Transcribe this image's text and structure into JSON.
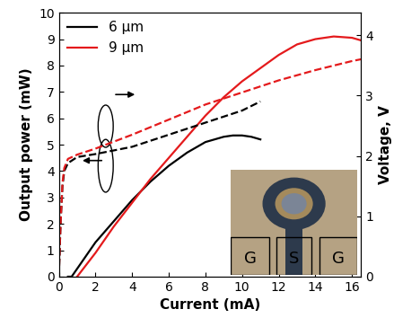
{
  "chart_data": {
    "type": "line",
    "x_label": "Current (mA)",
    "y_label": "Output power (mW)",
    "y2_label": "Voltage, V",
    "xlim": [
      0,
      16.5
    ],
    "xticks": [
      0,
      2,
      4,
      6,
      8,
      10,
      12,
      14,
      16
    ],
    "ylim": [
      0,
      10
    ],
    "yticks": [
      0,
      1,
      2,
      3,
      4,
      5,
      6,
      7,
      8,
      9,
      10
    ],
    "y2lim": [
      0,
      4.37
    ],
    "y2ticks": [
      0,
      1,
      2,
      3,
      4
    ],
    "grid": false,
    "legend": "upper left",
    "annotations": [
      "G",
      "S",
      "G"
    ],
    "series": [
      {
        "name": "6 µm",
        "color": "#000000",
        "line_style": "solid",
        "x": [
          0.5,
          0.7,
          1,
          2,
          3,
          4,
          5,
          6,
          7,
          8,
          9,
          9.5,
          10,
          10.5,
          11
        ],
        "values": [
          0,
          0,
          0.3,
          1.3,
          2.1,
          2.9,
          3.6,
          4.2,
          4.7,
          5.1,
          5.3,
          5.35,
          5.35,
          5.3,
          5.2
        ]
      },
      {
        "name": "9 µm",
        "color": "#e41a1c",
        "line_style": "solid",
        "x": [
          1,
          2,
          3,
          4,
          5,
          6,
          7,
          8,
          9,
          10,
          11,
          12,
          13,
          14,
          15,
          16,
          16.5
        ],
        "values": [
          0,
          0.9,
          1.9,
          2.8,
          3.7,
          4.5,
          5.3,
          6.1,
          6.8,
          7.4,
          7.9,
          8.4,
          8.8,
          9.0,
          9.1,
          9.05,
          8.95
        ]
      },
      {
        "name": "6 µm",
        "color": "#000000",
        "line_style": "dashed",
        "axis": "y2",
        "x": [
          0,
          0.1,
          0.2,
          0.3,
          0.5,
          1,
          2,
          3,
          4,
          5,
          6,
          7,
          8,
          9,
          10,
          11
        ],
        "values": [
          0,
          0.9,
          1.5,
          1.75,
          1.88,
          1.98,
          2.03,
          2.09,
          2.15,
          2.25,
          2.35,
          2.45,
          2.55,
          2.65,
          2.75,
          2.9
        ]
      },
      {
        "name": "9 µm",
        "color": "#e41a1c",
        "line_style": "dashed",
        "axis": "y2",
        "x": [
          0,
          0.1,
          0.2,
          0.3,
          0.5,
          1,
          2,
          4,
          6,
          8,
          10,
          12,
          14,
          16,
          16.5
        ],
        "values": [
          0,
          0.9,
          1.55,
          1.8,
          1.95,
          2.02,
          2.12,
          2.35,
          2.6,
          2.85,
          3.05,
          3.25,
          3.42,
          3.57,
          3.6
        ]
      }
    ]
  }
}
